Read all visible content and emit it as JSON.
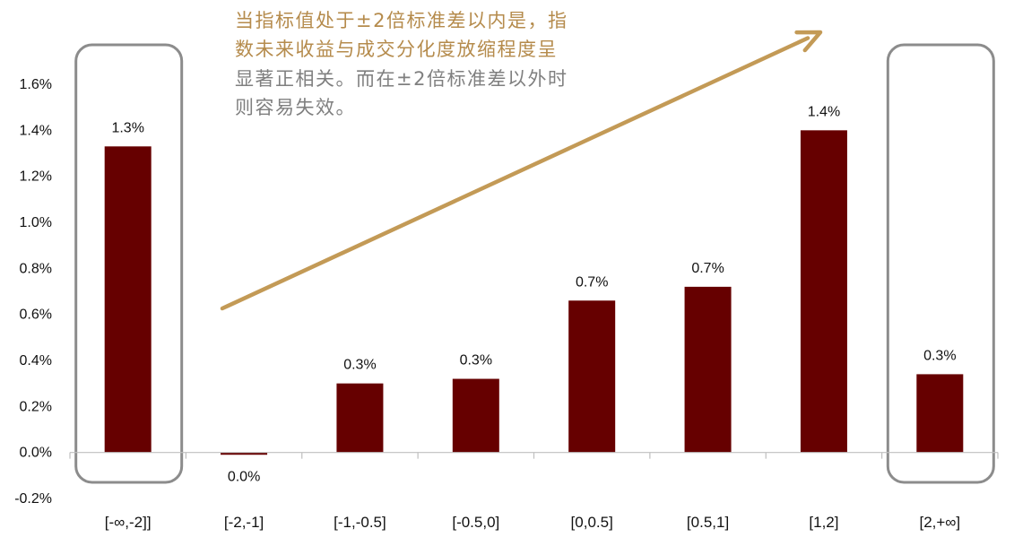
{
  "chart_data": {
    "type": "bar",
    "categories": [
      "[-∞,-2]]",
      "[-2,-1]",
      "[-1,-0.5]",
      "[-0.5,0]",
      "[0,0.5]",
      "[0.5,1]",
      "[1,2]",
      "[2,+∞]"
    ],
    "values": [
      1.33,
      -0.01,
      0.3,
      0.32,
      0.66,
      0.72,
      1.4,
      0.34
    ],
    "data_labels": [
      "1.3%",
      "0.0%",
      "0.3%",
      "0.3%",
      "0.7%",
      "0.7%",
      "1.4%",
      "0.3%"
    ],
    "y_ticks": [
      -0.2,
      0.0,
      0.2,
      0.4,
      0.6,
      0.8,
      1.0,
      1.2,
      1.4,
      1.6
    ],
    "y_tick_labels": [
      "-0.2%",
      "0.0%",
      "0.2%",
      "0.4%",
      "0.6%",
      "0.8%",
      "1.0%",
      "1.2%",
      "1.4%",
      "1.6%"
    ],
    "ylim": [
      -0.2,
      1.6
    ],
    "title": "",
    "xlabel": "",
    "ylabel": "",
    "grid": false,
    "legend": "none",
    "highlighted_categories": [
      "[-∞,-2]]",
      "[2,+∞]"
    ]
  },
  "annotation": {
    "lines": [
      "当指标值处于±2倍标准差以内是，指",
      "数未来收益与成交分化度放缩程度呈",
      "显著正相关。而在±2倍标准差以外时",
      "则容易失效。"
    ],
    "line_colors": [
      "#b58b4c",
      "#b58b4c",
      "#7f7f7f",
      "#7f7f7f"
    ]
  },
  "colors": {
    "bar": "#660000",
    "arrow": "#c39a56",
    "highlight_box": "#8c8c8c",
    "axis": "#bfbfbf"
  }
}
